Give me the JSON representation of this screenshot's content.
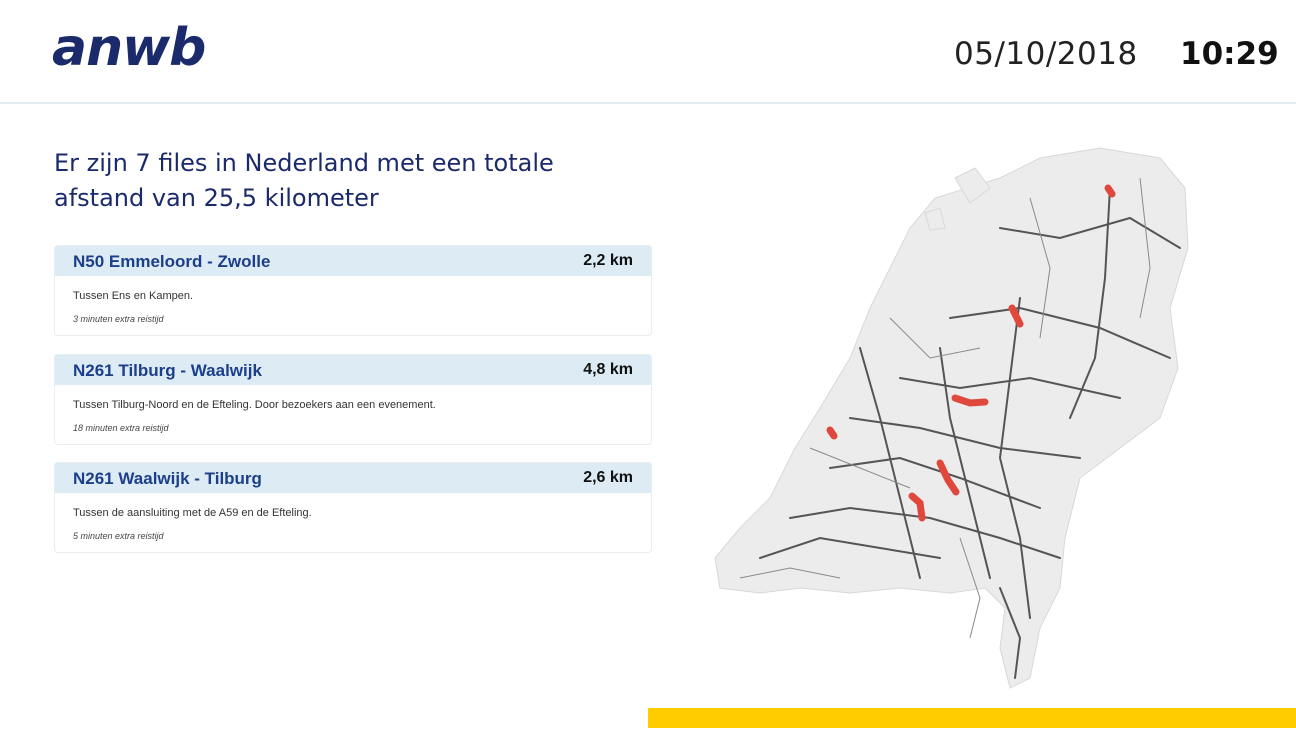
{
  "header": {
    "logo": "anwb",
    "date": "05/10/2018",
    "time": "10:29"
  },
  "summary": {
    "line1": "Er zijn 7 files in Nederland met een totale",
    "line2": "afstand van 25,5 kilometer"
  },
  "jams": [
    {
      "road": "N50 Emmeloord - Zwolle",
      "length": "2,2 km",
      "description": "Tussen Ens en Kampen.",
      "delay": "3 minuten extra reistijd"
    },
    {
      "road": "N261 Tilburg - Waalwijk",
      "length": "4,8 km",
      "description": "Tussen Tilburg-Noord en de Efteling. Door bezoekers aan een evenement.",
      "delay": "18 minuten extra reistijd"
    },
    {
      "road": "N261 Waalwijk - Tilburg",
      "length": "2,6 km",
      "description": "Tussen de aansluiting met de A59 en de Efteling.",
      "delay": "5 minuten extra reistijd"
    }
  ],
  "colors": {
    "brand": "#1b2a6b",
    "jam_header": "#dcebf4",
    "jam_marker": "#e0483e",
    "accent_bar": "#ffcc00"
  }
}
